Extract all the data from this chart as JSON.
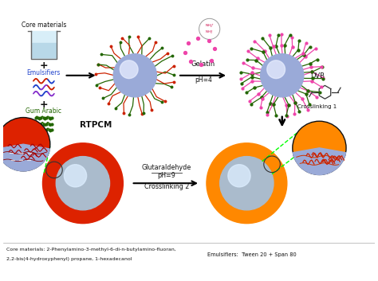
{
  "title": "",
  "background_color": "#ffffff",
  "figsize": [
    4.74,
    3.53
  ],
  "dpi": 100,
  "labels": {
    "core_materials": "Core materials",
    "plus1": "+",
    "emulsifiers": "Emulsifiers",
    "plus2": "+",
    "gum_arabic": "Gum Arabic",
    "gelatin": "Gelatin",
    "ph4": "pH=4",
    "dvb": "DVB",
    "crosslinking1": "Crosslinking 1",
    "rtpcm": "RTPCM",
    "glutaraldehyde": "Glutaraldehyde",
    "ph9": "pH=9",
    "crosslinking2": "Crosslinking 2",
    "footer1": "Core materials: 2-Phenylamino-3-methyl-6-di-n-butylamino-fluoran,",
    "footer2": "2,2-bis(4-hydroxyphenyl) propane, 1-hexadecanol",
    "footer3": "Emulsifiers:  Tween 20 + Span 80"
  },
  "colors": {
    "blue_sphere": "#9aaad8",
    "blue_sphere_center": "#e8eeff",
    "red_shell": "#dd2200",
    "orange_shell": "#ff8800",
    "gray_sphere": "#aabbcc",
    "gray_sphere_center": "#ddeeff",
    "dark_green_chain": "#226600",
    "red_chain": "#cc2200",
    "pink_gelatin": "#ee44aa",
    "arrow_color": "#111111",
    "text_dark": "#111111",
    "beaker_fill": "#d8eef8",
    "beaker_line": "#888888"
  }
}
